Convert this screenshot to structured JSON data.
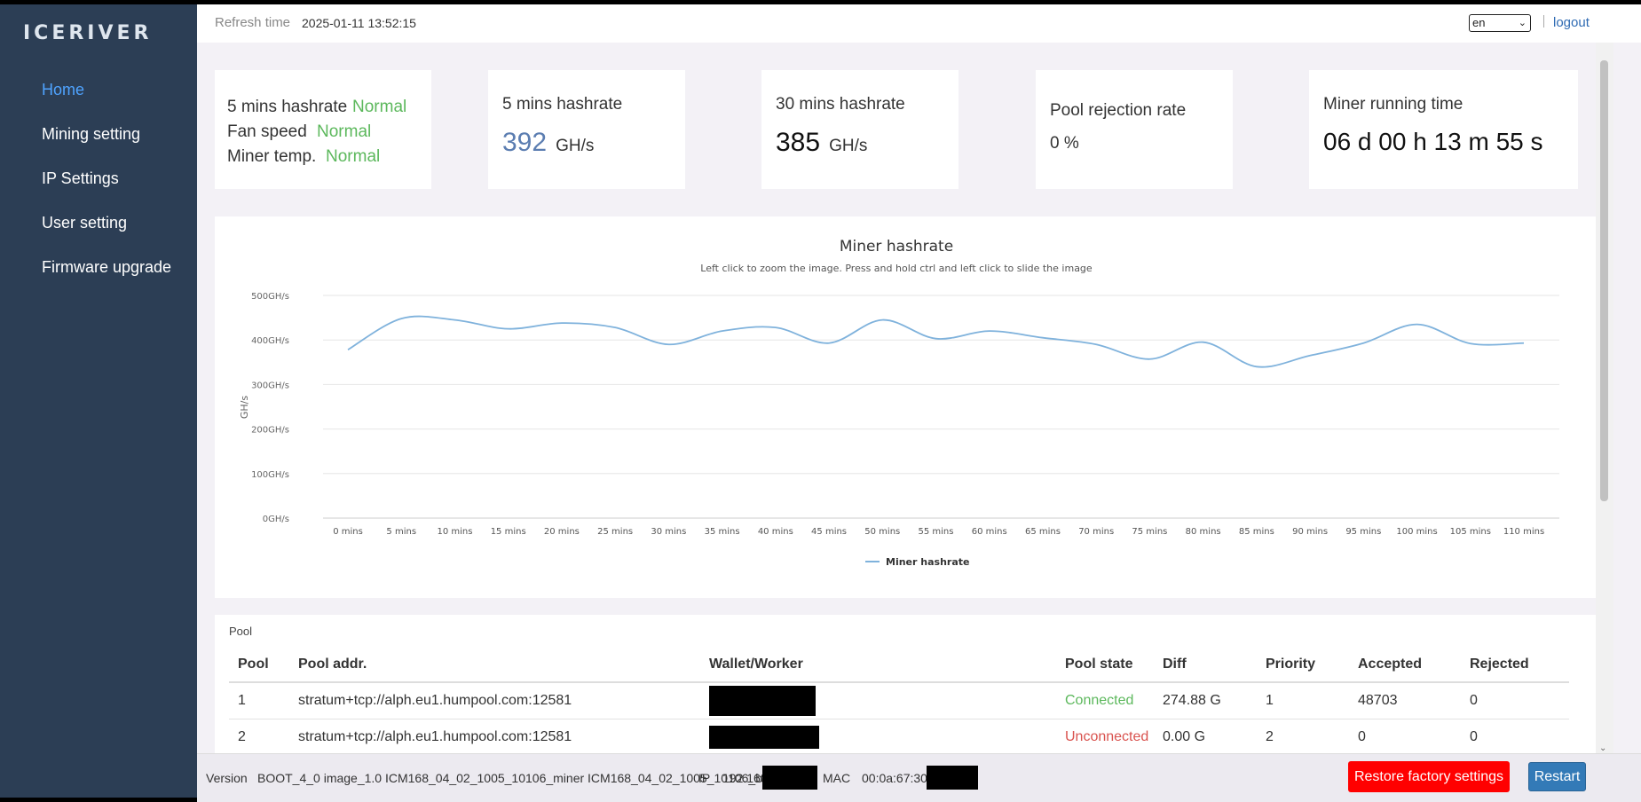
{
  "brand": {
    "logo": "ICERIVER"
  },
  "sidebar": {
    "items": [
      {
        "label": "Home",
        "active": true
      },
      {
        "label": "Mining setting"
      },
      {
        "label": "IP Settings"
      },
      {
        "label": "User setting"
      },
      {
        "label": "Firmware upgrade"
      }
    ]
  },
  "header": {
    "refresh_label": "Refresh time",
    "refresh_value": "2025-01-11 13:52:15",
    "language": "en",
    "logout": "logout"
  },
  "status": {
    "rows": [
      {
        "label": "5 mins hashrate",
        "value": "Normal"
      },
      {
        "label": "Fan speed",
        "value": "Normal"
      },
      {
        "label": "Miner temp.",
        "value": "Normal"
      }
    ],
    "status_color": "#5cb85c"
  },
  "cards": {
    "hash5": {
      "title": "5 mins hashrate",
      "value": "392",
      "unit": "GH/s"
    },
    "hash30": {
      "title": "30 mins hashrate",
      "value": "385",
      "unit": "GH/s"
    },
    "rejection": {
      "title": "Pool rejection rate",
      "value": "0 %"
    },
    "runtime": {
      "title": "Miner running time",
      "value": "06 d 00 h 13 m 55 s"
    }
  },
  "chart_data": {
    "type": "line",
    "title": "Miner hashrate",
    "subtitle": "Left click to zoom the image. Press and hold ctrl and left click to slide the image",
    "ylabel": "GH/s",
    "ylim": [
      0,
      500
    ],
    "yticks": [
      "0GH/s",
      "100GH/s",
      "200GH/s",
      "300GH/s",
      "400GH/s",
      "500GH/s"
    ],
    "categories": [
      "0 mins",
      "5 mins",
      "10 mins",
      "15 mins",
      "20 mins",
      "25 mins",
      "30 mins",
      "35 mins",
      "40 mins",
      "45 mins",
      "50 mins",
      "55 mins",
      "60 mins",
      "65 mins",
      "70 mins",
      "75 mins",
      "80 mins",
      "85 mins",
      "90 mins",
      "95 mins",
      "100 mins",
      "105 mins",
      "110 mins"
    ],
    "series": [
      {
        "name": "Miner hashrate",
        "color": "#7fb2dc",
        "values": [
          378,
          448,
          445,
          425,
          438,
          428,
          390,
          420,
          428,
          393,
          445,
          403,
          420,
          405,
          390,
          357,
          395,
          340,
          365,
          393,
          435,
          392,
          393
        ]
      }
    ],
    "legend": "bottom-center",
    "grid": true
  },
  "pool": {
    "label": "Pool",
    "headers": [
      "Pool",
      "Pool addr.",
      "Wallet/Worker",
      "Pool state",
      "Diff",
      "Priority",
      "Accepted",
      "Rejected"
    ],
    "rows": [
      {
        "pool": "1",
        "addr": "stratum+tcp://alph.eu1.humpool.com:12581",
        "state": "Connected",
        "diff": "274.88 G",
        "priority": "1",
        "accepted": "48703",
        "rejected": "0"
      },
      {
        "pool": "2",
        "addr": "stratum+tcp://alph.eu1.humpool.com:12581",
        "state": "Unconnected",
        "diff": "0.00 G",
        "priority": "2",
        "accepted": "0",
        "rejected": "0"
      }
    ]
  },
  "footer": {
    "version_label": "Version",
    "version_value": "BOOT_4_0 image_1.0 ICM168_04_02_1005_10106_miner ICM168_04_02_1005_10106_bg",
    "ip_label": "IP",
    "ip_value": "192.168",
    "mac_label": "MAC",
    "mac_value": "00:0a:67:30",
    "restore_button": "Restore factory settings",
    "restart_button": "Restart"
  }
}
